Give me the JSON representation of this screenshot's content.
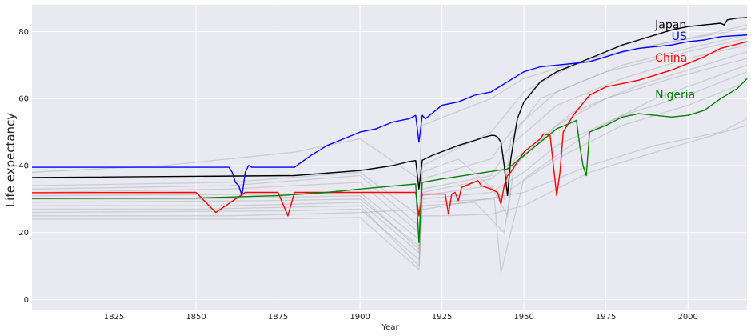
{
  "chart_data": {
    "type": "line",
    "title": "",
    "xlabel": "Year",
    "ylabel": "Life expectancy",
    "xlim": [
      1800,
      2018
    ],
    "ylim": [
      -3,
      88
    ],
    "xticks": [
      1825,
      1850,
      1875,
      1900,
      1925,
      1950,
      1975,
      2000
    ],
    "yticks": [
      0,
      20,
      40,
      60,
      80
    ],
    "grid": true,
    "background_color": "#e9e9f1",
    "grid_color": "#ffffff",
    "legend": "none",
    "background_series_color": "#999999",
    "background_series_note": "about 180 other countries, thin translucent grey lines",
    "background_series": [
      {
        "x": [
          1800,
          1870,
          1900,
          1918,
          1919,
          1925,
          1940,
          1950,
          1970,
          1990,
          2018
        ],
        "y": [
          24,
          24,
          24.5,
          9,
          25,
          25,
          25.5,
          28,
          38,
          44,
          52
        ]
      },
      {
        "x": [
          1800,
          1880,
          1900,
          1918,
          1919,
          1935,
          1944,
          1946,
          1960,
          1980,
          2000,
          2018
        ],
        "y": [
          26,
          26.5,
          27,
          12,
          28,
          29,
          20,
          33,
          42,
          52,
          58,
          65
        ]
      },
      {
        "x": [
          1800,
          1860,
          1900,
          1918,
          1919,
          1940,
          1950,
          1960,
          1980,
          2000,
          2018
        ],
        "y": [
          28,
          28,
          29,
          14,
          30,
          32,
          38,
          46,
          55,
          61,
          68
        ]
      },
      {
        "x": [
          1800,
          1870,
          1900,
          1918,
          1919,
          1940,
          1945,
          1947,
          1960,
          1975,
          1995,
          2018
        ],
        "y": [
          29,
          29.5,
          30,
          16,
          31,
          34,
          25,
          40,
          52,
          60,
          66,
          72
        ]
      },
      {
        "x": [
          1800,
          1850,
          1900,
          1918,
          1919,
          1940,
          1950,
          1965,
          1985,
          2005,
          2018
        ],
        "y": [
          30,
          30,
          31,
          15,
          32,
          36,
          44,
          56,
          64,
          70,
          74
        ]
      },
      {
        "x": [
          1800,
          1880,
          1900,
          1918,
          1919,
          1940,
          1946,
          1960,
          1980,
          2000,
          2018
        ],
        "y": [
          31,
          31.5,
          32,
          18,
          33,
          37,
          46,
          58,
          66,
          72,
          76
        ]
      },
      {
        "x": [
          1800,
          1860,
          1900,
          1918,
          1919,
          1940,
          1946,
          1960,
          1980,
          2000,
          2018
        ],
        "y": [
          32,
          33,
          35,
          20,
          36,
          42,
          50,
          62,
          70,
          75,
          79
        ]
      },
      {
        "x": [
          1800,
          1860,
          1900,
          1918,
          1919,
          1940,
          1950,
          1965,
          1985,
          2005,
          2018
        ],
        "y": [
          34,
          35,
          38,
          25,
          40,
          50,
          62,
          70,
          75,
          79,
          82
        ]
      },
      {
        "x": [
          1800,
          1840,
          1880,
          1900,
          1918,
          1919,
          1940,
          1950,
          1970,
          1990,
          2018
        ],
        "y": [
          38,
          40,
          44,
          48,
          36,
          52,
          60,
          66,
          72,
          76,
          81
        ]
      },
      {
        "x": [
          1800,
          1850,
          1900,
          1918,
          1919,
          1941,
          1943,
          1950,
          1970,
          1990,
          2018
        ],
        "y": [
          27,
          27,
          28,
          10,
          29,
          30,
          8,
          36,
          50,
          60,
          70
        ]
      },
      {
        "x": [
          1800,
          1860,
          1900,
          1920,
          1950,
          1970,
          1990,
          2010,
          2018
        ],
        "y": [
          25,
          25,
          26,
          27,
          32,
          40,
          46,
          50,
          54
        ]
      },
      {
        "x": [
          1800,
          1860,
          1900,
          1918,
          1919,
          1930,
          1944,
          1946,
          1955,
          1975,
          2000,
          2018
        ],
        "y": [
          33,
          34,
          37,
          22,
          38,
          42,
          30,
          48,
          60,
          68,
          74,
          78
        ]
      }
    ],
    "series": [
      {
        "name": "Japan",
        "color": "#000000",
        "x": [
          1800,
          1880,
          1900,
          1910,
          1915,
          1917,
          1918,
          1919,
          1922,
          1930,
          1935,
          1938,
          1940,
          1941,
          1942,
          1943,
          1944,
          1945,
          1946,
          1948,
          1950,
          1955,
          1960,
          1965,
          1970,
          1975,
          1980,
          1985,
          1990,
          1995,
          2000,
          2005,
          2010,
          2011,
          2012,
          2015,
          2018
        ],
        "y": [
          36.4,
          37,
          38.5,
          40,
          41.2,
          41.5,
          33,
          41.6,
          43,
          46,
          47.5,
          48.5,
          49,
          49,
          48.5,
          47,
          40,
          31,
          42,
          54,
          59,
          65,
          68,
          70,
          72,
          74,
          76,
          77.5,
          79,
          80.5,
          81.5,
          82,
          82.5,
          82,
          83.5,
          84,
          84.2
        ]
      },
      {
        "name": "US",
        "color": "#0000ff",
        "x": [
          1800,
          1860,
          1861,
          1862,
          1863,
          1864,
          1865,
          1866,
          1867,
          1870,
          1880,
          1885,
          1890,
          1895,
          1900,
          1905,
          1910,
          1915,
          1917,
          1918,
          1919,
          1920,
          1925,
          1930,
          1935,
          1940,
          1945,
          1950,
          1955,
          1960,
          1965,
          1970,
          1975,
          1980,
          1985,
          1990,
          1995,
          2000,
          2005,
          2010,
          2018
        ],
        "y": [
          39.5,
          39.5,
          38,
          35,
          34,
          31,
          38,
          40,
          39.5,
          39.5,
          39.5,
          43,
          46,
          48,
          50,
          51,
          53,
          54,
          55,
          47,
          55,
          54,
          58,
          59,
          61,
          62,
          65,
          68,
          69.5,
          70,
          70.5,
          71,
          72.5,
          74,
          75,
          75.5,
          76,
          77,
          77.5,
          78.5,
          79
        ]
      },
      {
        "name": "China",
        "color": "#ff0000",
        "x": [
          1800,
          1850,
          1856,
          1865,
          1875,
          1878,
          1880,
          1900,
          1917,
          1918,
          1919,
          1926,
          1927,
          1928,
          1929,
          1930,
          1931,
          1936,
          1937,
          1940,
          1942,
          1943,
          1944,
          1945,
          1946,
          1950,
          1955,
          1956,
          1958,
          1959,
          1960,
          1961,
          1962,
          1965,
          1970,
          1975,
          1980,
          1985,
          1990,
          1995,
          2000,
          2005,
          2010,
          2018
        ],
        "y": [
          31.9,
          32,
          26,
          32,
          32,
          25,
          32,
          32,
          32,
          25,
          31.5,
          31.5,
          25.5,
          31.5,
          32,
          29.5,
          33.5,
          35.5,
          34,
          33,
          32,
          28.5,
          34,
          37,
          38,
          44,
          48,
          49.5,
          49,
          40,
          31,
          38,
          50,
          55,
          61,
          63.5,
          64.5,
          65.5,
          67,
          68.5,
          70.5,
          72.5,
          75,
          77
        ]
      },
      {
        "name": "Nigeria",
        "color": "#008000",
        "x": [
          1800,
          1850,
          1875,
          1890,
          1900,
          1917,
          1918,
          1919,
          1925,
          1935,
          1945,
          1950,
          1955,
          1960,
          1965,
          1966,
          1967,
          1968,
          1969,
          1970,
          1975,
          1980,
          1985,
          1990,
          1995,
          2000,
          2005,
          2010,
          2015,
          2018
        ],
        "y": [
          30.2,
          30.3,
          31,
          32,
          33,
          34.5,
          17,
          35,
          36,
          37.5,
          39,
          43,
          47,
          51,
          53,
          53.5,
          46,
          40,
          37,
          50,
          52,
          54.5,
          55.5,
          55,
          54.5,
          55,
          56.5,
          60,
          63,
          66
        ]
      }
    ],
    "annotations": [
      {
        "text": "Japan",
        "x": 1990,
        "y": 81,
        "color": "#000000"
      },
      {
        "text": "US",
        "x": 1995,
        "y": 77.5,
        "color": "#0000ff"
      },
      {
        "text": "China",
        "x": 1990,
        "y": 71,
        "color": "#ff0000"
      },
      {
        "text": "Nigeria",
        "x": 1990,
        "y": 60,
        "color": "#008000"
      }
    ]
  }
}
